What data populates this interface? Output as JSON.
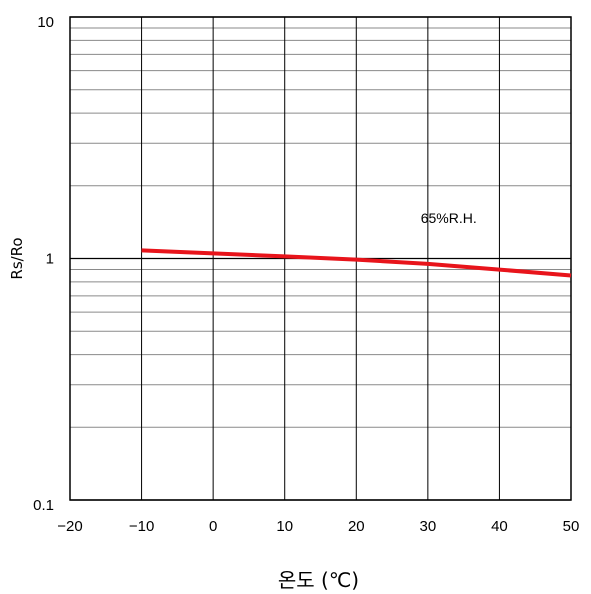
{
  "chart_data": {
    "type": "line",
    "title": "",
    "xlabel": "온도 (℃)",
    "ylabel": "Rs/Ro",
    "xlim": [
      -20,
      50
    ],
    "ylim": [
      0.1,
      10
    ],
    "yscale": "log",
    "grid": true,
    "x_ticks": [
      -20,
      -10,
      0,
      10,
      20,
      30,
      40,
      50
    ],
    "y_ticks": [
      0.1,
      1,
      10
    ],
    "x_tick_labels": [
      "−20",
      "−10",
      "0",
      "10",
      "20",
      "30",
      "40",
      "50"
    ],
    "y_tick_labels": [
      "0.1",
      "1",
      "10"
    ],
    "series": [
      {
        "name": "65%R.H.",
        "color": "#e8141b",
        "x": [
          -10,
          0,
          10,
          20,
          30,
          40,
          50
        ],
        "y": [
          1.08,
          1.05,
          1.02,
          0.99,
          0.95,
          0.9,
          0.85
        ]
      }
    ],
    "annotations": [
      {
        "text": "65%R.H.",
        "x": 29,
        "y": 1.4
      }
    ]
  }
}
